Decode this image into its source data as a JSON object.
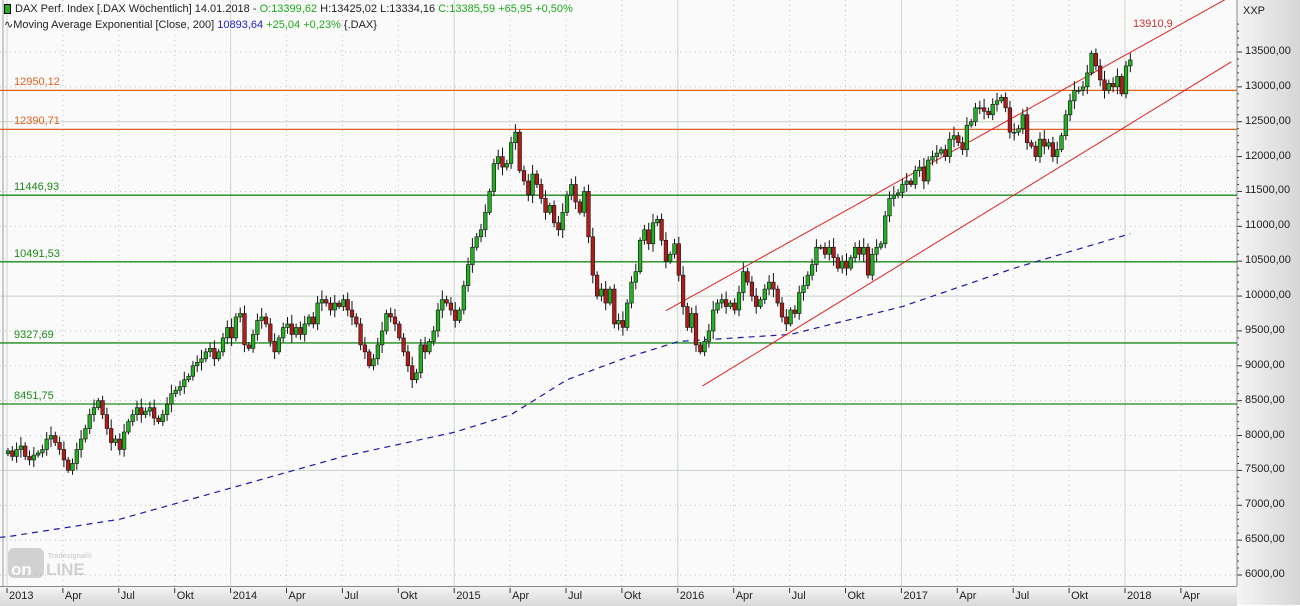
{
  "header": {
    "line1_prefix": "DAX Perf. Index [.DAX  Wöchentlich] 14.01.2018 - ",
    "open": "O:13399,62",
    "high": "H:13425,02",
    "low": "L:13334,16",
    "close": "C:13385,59 +65,95 +0,50%",
    "line2_prefix": "Moving Average Exponential [Close, 200] ",
    "ma_value": "10893,64",
    "ma_change": "+25,04 +0,23%",
    "ma_symbol": "{.DAX}"
  },
  "axis_unit": "XXP",
  "channel_label": "13910,9",
  "logo_text": {
    "small": "Tradesignal®",
    "big": "onLine"
  },
  "colors": {
    "up": "#22b022",
    "down": "#b01c1c",
    "resistance": "#e06020",
    "support": "#1a8a1a",
    "channel": "#e02020",
    "ema": "#1a1aa0"
  },
  "chart_data": {
    "type": "candlestick",
    "title": "DAX Perf. Index weekly",
    "ylim": [
      6000,
      13500
    ],
    "yticks": [
      "6000,00",
      "6500,00",
      "7000,00",
      "7500,00",
      "8000,00",
      "8500,00",
      "9000,00",
      "9500,00",
      "10000,00",
      "10500,00",
      "11000,00",
      "11500,00",
      "12000,00",
      "12500,00",
      "13000,00",
      "13500,00"
    ],
    "ytick_values": [
      6000,
      6500,
      7000,
      7500,
      8000,
      8500,
      9000,
      9500,
      10000,
      10500,
      11000,
      11500,
      12000,
      12500,
      13000,
      13500
    ],
    "xticks": [
      "2013",
      "Apr",
      "Jul",
      "Okt",
      "2014",
      "Apr",
      "Jul",
      "Okt",
      "2015",
      "Apr",
      "Jul",
      "Okt",
      "2016",
      "Apr",
      "Jul",
      "Okt",
      "2017",
      "Apr",
      "Jul",
      "Okt",
      "2018",
      "Apr"
    ],
    "weeks_per_tick": 13,
    "weekly_close": [
      7780,
      7700,
      7800,
      7850,
      7700,
      7650,
      7720,
      7750,
      7800,
      7950,
      8000,
      7900,
      7800,
      7650,
      7500,
      7600,
      7800,
      7950,
      8100,
      8300,
      8400,
      8500,
      8300,
      8100,
      7900,
      7950,
      7800,
      8050,
      8200,
      8300,
      8400,
      8300,
      8350,
      8400,
      8250,
      8200,
      8300,
      8450,
      8600,
      8650,
      8700,
      8800,
      8850,
      9000,
      9050,
      9100,
      9200,
      9250,
      9100,
      9200,
      9400,
      9550,
      9400,
      9700,
      9750,
      9300,
      9250,
      9450,
      9650,
      9700,
      9600,
      9350,
      9200,
      9400,
      9550,
      9600,
      9450,
      9550,
      9450,
      9600,
      9700,
      9600,
      9900,
      9950,
      9900,
      9800,
      9900,
      9850,
      9950,
      9800,
      9700,
      9600,
      9300,
      9200,
      9000,
      9100,
      9300,
      9500,
      9750,
      9700,
      9600,
      9400,
      9200,
      9000,
      8800,
      8900,
      9300,
      9200,
      9350,
      9500,
      9800,
      9950,
      9900,
      9800,
      9650,
      9800,
      10150,
      10450,
      10700,
      10850,
      10950,
      11200,
      11500,
      11900,
      12000,
      11850,
      11900,
      12200,
      12350,
      11800,
      11650,
      11450,
      11750,
      11600,
      11400,
      11200,
      11300,
      11050,
      10950,
      11200,
      11450,
      11600,
      11350,
      11200,
      11500,
      10850,
      10300,
      10000,
      10100,
      9900,
      10100,
      9600,
      9650,
      9550,
      9900,
      10200,
      10350,
      10800,
      10950,
      10750,
      11050,
      11100,
      10800,
      10500,
      10600,
      10750,
      10300,
      9850,
      9550,
      9750,
      9300,
      9200,
      9350,
      9500,
      9800,
      9900,
      9950,
      9850,
      9900,
      9800,
      10050,
      10350,
      10200,
      10000,
      9850,
      9950,
      10100,
      10200,
      10100,
      9900,
      9700,
      9600,
      9800,
      9750,
      10050,
      10150,
      10300,
      10450,
      10700,
      10700,
      10600,
      10700,
      10550,
      10400,
      10500,
      10400,
      10550,
      10700,
      10600,
      10700,
      10300,
      10600,
      10700,
      10750,
      11150,
      11400,
      11450,
      11480,
      11600,
      11650,
      11600,
      11800,
      11850,
      11650,
      11950,
      12000,
      12050,
      12100,
      12000,
      12250,
      12300,
      12200,
      12100,
      12450,
      12500,
      12700,
      12700,
      12650,
      12600,
      12750,
      12800,
      12850,
      12700,
      12350,
      12350,
      12400,
      12600,
      12200,
      12150,
      12000,
      12250,
      12150,
      12200,
      12000,
      12100,
      12300,
      12600,
      12800,
      12950,
      12950,
      13000,
      13200,
      13480,
      13300,
      13100,
      12950,
      13050,
      13000,
      13150,
      12900,
      13300,
      13386
    ],
    "ema200_points": [
      [
        0,
        6550
      ],
      [
        26,
        6800
      ],
      [
        52,
        7250
      ],
      [
        78,
        7700
      ],
      [
        104,
        8050
      ],
      [
        117,
        8300
      ],
      [
        130,
        8800
      ],
      [
        143,
        9100
      ],
      [
        156,
        9350
      ],
      [
        182,
        9450
      ],
      [
        208,
        9850
      ],
      [
        234,
        10400
      ],
      [
        261,
        10894
      ]
    ],
    "levels": [
      {
        "value": 12950.12,
        "label": "12950,12",
        "kind": "resistance"
      },
      {
        "value": 12390.71,
        "label": "12390,71",
        "kind": "resistance"
      },
      {
        "value": 11446.93,
        "label": "11446,93",
        "kind": "support"
      },
      {
        "value": 10491.53,
        "label": "10491,53",
        "kind": "support"
      },
      {
        "value": 9327.69,
        "label": "9327,69",
        "kind": "support"
      },
      {
        "value": 8451.75,
        "label": "8451,75",
        "kind": "support"
      }
    ],
    "channel": {
      "upper": [
        [
          153,
          9790
        ],
        [
          283,
          14250
        ]
      ],
      "lower": [
        [
          161.5,
          8710
        ],
        [
          284.5,
          13360
        ]
      ]
    }
  }
}
